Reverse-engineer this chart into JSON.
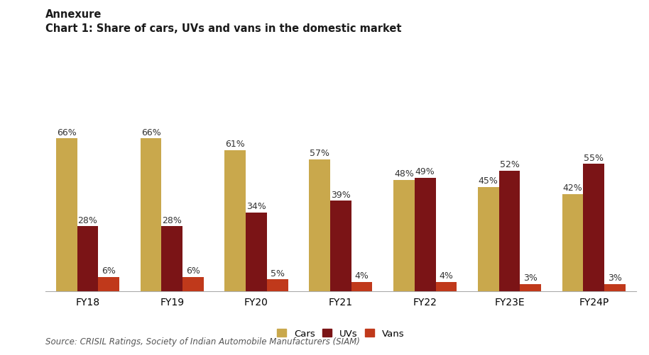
{
  "categories": [
    "FY18",
    "FY19",
    "FY20",
    "FY21",
    "FY22",
    "FY23E",
    "FY24P"
  ],
  "cars": [
    66,
    66,
    61,
    57,
    48,
    45,
    42
  ],
  "uvs": [
    28,
    28,
    34,
    39,
    49,
    52,
    55
  ],
  "vans": [
    6,
    6,
    5,
    4,
    4,
    3,
    3
  ],
  "cars_color": "#C9A84C",
  "uvs_color": "#7B1416",
  "vans_color": "#C0391B",
  "bg_color": "#FFFFFF",
  "title_line1": "Annexure",
  "title_line2": "Chart 1: Share of cars, UVs and vans in the domestic market",
  "source_text": "Source: CRISIL Ratings, Society of Indian Automobile Manufacturers (SIAM)",
  "legend_labels": [
    "Cars",
    "UVs",
    "Vans"
  ],
  "ylim": [
    0,
    80
  ],
  "bar_width": 0.25,
  "label_fontsize": 9,
  "tick_fontsize": 10
}
